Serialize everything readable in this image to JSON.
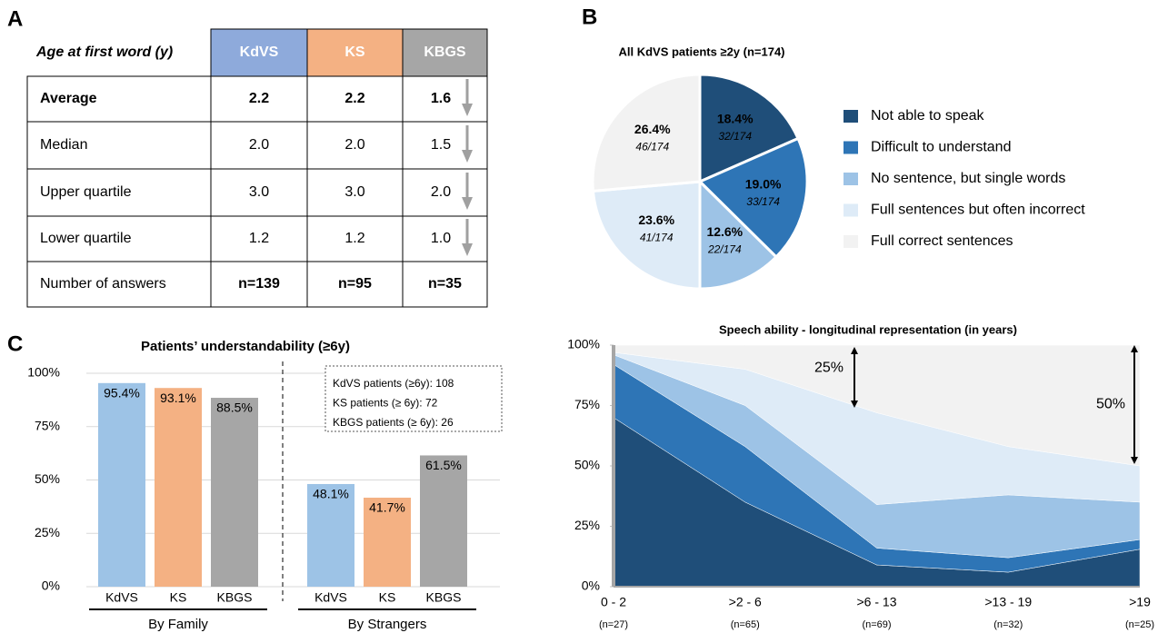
{
  "table": {
    "panel_label": "A",
    "header": [
      "Age at first word (y)",
      "KdVS",
      "KS",
      "KBGS"
    ],
    "rows": [
      [
        "Average",
        "2.2",
        "2.2",
        "1.6"
      ],
      [
        "Median",
        "2.0",
        "2.0",
        "1.5"
      ],
      [
        "Upper quartile",
        "3.0",
        "3.0",
        "2.0"
      ],
      [
        "Lower quartile",
        "1.2",
        "1.2",
        "1.0"
      ],
      [
        "Number of answers",
        "n=139",
        "n=95",
        "n=35"
      ]
    ]
  },
  "chart_data": [
    {
      "type": "pie",
      "panel_label": "B",
      "title": "All KdVS patients ≥2y (n=174)",
      "categories": [
        "Not able to speak",
        "Difficult to understand",
        "No sentence, but single words",
        "Full sentences but often incorrect",
        "Full correct sentences"
      ],
      "values": [
        18.4,
        19.0,
        12.6,
        23.6,
        26.4
      ],
      "value_labels": [
        "18.4%",
        "19.0%",
        "12.6%",
        "23.6%",
        "26.4%"
      ],
      "count_labels": [
        "32/174",
        "33/174",
        "22/174",
        "41/174",
        "46/174"
      ],
      "colors": [
        "#1f4e79",
        "#2e75b6",
        "#9dc3e6",
        "#deebf7",
        "#f2f2f2"
      ]
    },
    {
      "type": "bar",
      "panel_label": "C",
      "title": "Patients’ understandability (≥6y)",
      "categories": [
        "By Family",
        "By Strangers"
      ],
      "series": [
        {
          "name": "KdVS",
          "color": "#9dc3e6",
          "values": [
            95.4,
            48.1
          ],
          "value_labels": [
            "95.4%",
            "48.1%"
          ]
        },
        {
          "name": "KS",
          "color": "#f4b183",
          "values": [
            93.1,
            41.7
          ],
          "value_labels": [
            "93.1%",
            "41.7%"
          ]
        },
        {
          "name": "KBGS",
          "color": "#a6a6a6",
          "values": [
            88.5,
            61.5
          ],
          "value_labels": [
            "88.5%",
            "61.5%"
          ]
        }
      ],
      "ylim": [
        0,
        100
      ],
      "yticks": [
        {
          "value": 0,
          "label": "0%"
        },
        {
          "value": 25,
          "label": "25%"
        },
        {
          "value": 50,
          "label": "50%"
        },
        {
          "value": 75,
          "label": "75%"
        },
        {
          "value": 100,
          "label": "100%"
        }
      ],
      "grid": true,
      "annotation": [
        "KdVS patients (≥6y): 108",
        "KS patients (≥ 6y): 72",
        "KBGS patients (≥ 6y): 26"
      ]
    },
    {
      "type": "stacked-area",
      "title": "Speech ability - longitudinal representation (in years)",
      "categories": [
        "0 - 2",
        ">2 - 6",
        ">6 - 13",
        ">13 - 19",
        ">19"
      ],
      "category_sublabels": [
        "(n=27)",
        "(n=65)",
        "(n=69)",
        "(n=32)",
        "(n=25)"
      ],
      "series": [
        {
          "color": "#1f4e79",
          "values": [
            70,
            35,
            9,
            6,
            15.5
          ]
        },
        {
          "color": "#2e75b6",
          "values": [
            22,
            23,
            7,
            6,
            4
          ]
        },
        {
          "color": "#9dc3e6",
          "values": [
            4,
            17,
            18,
            26,
            15.5
          ]
        },
        {
          "color": "#deebf7",
          "values": [
            1,
            15,
            38,
            20,
            15
          ]
        },
        {
          "color": "#f2f2f2",
          "values": [
            3,
            10,
            28,
            42,
            50
          ]
        }
      ],
      "ylim": [
        0,
        100
      ],
      "yticks": [
        {
          "value": 0,
          "label": "0%"
        },
        {
          "value": 25,
          "label": "25%"
        },
        {
          "value": 50,
          "label": "50%"
        },
        {
          "value": 75,
          "label": "75%"
        },
        {
          "value": 100,
          "label": "100%"
        }
      ],
      "annotations": [
        "25%",
        "50%"
      ]
    }
  ]
}
